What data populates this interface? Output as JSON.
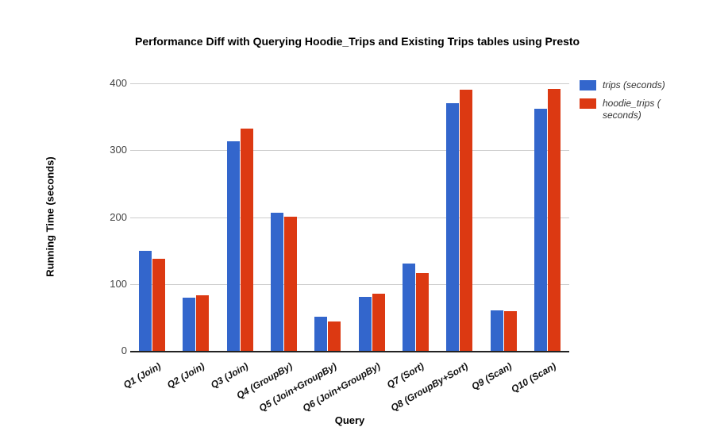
{
  "page": {
    "background": "#ffffff"
  },
  "chart_data": {
    "type": "bar",
    "title": "Performance Diff with Querying Hoodie_Trips and Existing Trips tables using Presto",
    "xlabel": "Query",
    "ylabel": "Running Time (seconds)",
    "ylim": [
      0,
      400
    ],
    "yticks": [
      0,
      100,
      200,
      300,
      400
    ],
    "grid": true,
    "legend_position": "right",
    "categories": [
      "Q1 (Join)",
      "Q2 (Join)",
      "Q3 (Join)",
      "Q4 (GroupBy)",
      "Q5 (Join+GroupBy)",
      "Q6 (Join+GroupBy)",
      "Q7 (Sort)",
      "Q8 (GroupBy+Sort)",
      "Q9 (Scan)",
      "Q10 (Scan)"
    ],
    "series": [
      {
        "name": "trips (seconds)",
        "color": "#3366CC",
        "values": [
          150,
          80,
          313,
          207,
          51,
          81,
          130,
          370,
          60,
          362
        ]
      },
      {
        "name": "hoodie_trips ( seconds)",
        "color": "#DC3912",
        "values": [
          138,
          83,
          332,
          201,
          44,
          85,
          116,
          390,
          59,
          392
        ]
      }
    ]
  }
}
